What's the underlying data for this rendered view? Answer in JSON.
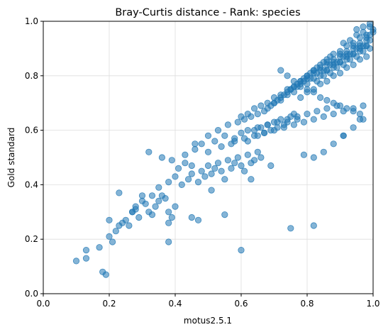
{
  "chart_data": {
    "type": "scatter",
    "title": "Bray-Curtis distance - Rank: species",
    "xlabel": "motus2.5.1",
    "ylabel": "Gold standard",
    "xlim": [
      0.0,
      1.0
    ],
    "ylim": [
      0.0,
      1.0
    ],
    "xticks": [
      "0.0",
      "0.2",
      "0.4",
      "0.6",
      "0.8",
      "1.0"
    ],
    "yticks": [
      "0.0",
      "0.2",
      "0.4",
      "0.6",
      "0.8",
      "1.0"
    ],
    "grid": true,
    "color": "#1f77b4",
    "marker_alpha": 0.55,
    "series": [
      {
        "x": [
          0.1,
          0.13,
          0.13,
          0.17,
          0.18,
          0.19,
          0.2,
          0.2,
          0.21,
          0.22,
          0.23,
          0.24,
          0.25,
          0.26,
          0.27,
          0.28,
          0.28,
          0.29,
          0.3,
          0.31,
          0.32,
          0.33,
          0.34,
          0.35,
          0.36,
          0.37,
          0.38,
          0.38,
          0.39,
          0.4,
          0.23,
          0.27,
          0.3,
          0.33,
          0.35,
          0.38,
          0.4,
          0.42,
          0.44,
          0.45,
          0.47,
          0.48,
          0.49,
          0.5,
          0.51,
          0.52,
          0.53,
          0.54,
          0.55,
          0.56,
          0.57,
          0.58,
          0.59,
          0.6,
          0.61,
          0.62,
          0.63,
          0.64,
          0.65,
          0.66,
          0.32,
          0.36,
          0.39,
          0.41,
          0.43,
          0.45,
          0.46,
          0.48,
          0.5,
          0.52,
          0.54,
          0.55,
          0.57,
          0.58,
          0.6,
          0.62,
          0.64,
          0.65,
          0.66,
          0.67,
          0.68,
          0.69,
          0.7,
          0.71,
          0.72,
          0.73,
          0.74,
          0.75,
          0.76,
          0.77,
          0.43,
          0.46,
          0.5,
          0.53,
          0.56,
          0.59,
          0.61,
          0.63,
          0.65,
          0.67,
          0.68,
          0.69,
          0.7,
          0.71,
          0.72,
          0.73,
          0.74,
          0.75,
          0.76,
          0.77,
          0.78,
          0.79,
          0.8,
          0.81,
          0.82,
          0.83,
          0.84,
          0.85,
          0.86,
          0.87,
          0.6,
          0.62,
          0.64,
          0.66,
          0.68,
          0.7,
          0.72,
          0.74,
          0.76,
          0.78,
          0.8,
          0.82,
          0.84,
          0.86,
          0.88,
          0.9,
          0.92,
          0.94,
          0.96,
          0.98,
          0.7,
          0.72,
          0.74,
          0.76,
          0.78,
          0.8,
          0.82,
          0.84,
          0.86,
          0.88,
          0.9,
          0.92,
          0.94,
          0.96,
          0.98,
          0.99,
          0.75,
          0.77,
          0.79,
          0.81,
          0.83,
          0.85,
          0.87,
          0.89,
          0.91,
          0.93,
          0.95,
          0.97,
          0.99,
          0.78,
          0.8,
          0.82,
          0.84,
          0.86,
          0.88,
          0.9,
          0.92,
          0.94,
          0.96,
          0.98,
          1.0,
          0.8,
          0.82,
          0.84,
          0.86,
          0.88,
          0.9,
          0.92,
          0.94,
          0.96,
          0.98,
          0.83,
          0.85,
          0.87,
          0.89,
          0.91,
          0.93,
          0.95,
          0.97,
          0.99,
          0.86,
          0.88,
          0.9,
          0.92,
          0.94,
          0.96,
          0.98,
          0.88,
          0.9,
          0.92,
          0.94,
          0.96,
          0.98,
          1.0,
          0.91,
          0.93,
          0.95,
          0.97,
          0.99,
          0.95,
          0.97,
          0.99,
          0.72,
          0.74,
          0.76,
          0.78,
          0.8,
          0.82,
          0.84,
          0.86,
          0.88,
          0.9,
          0.92,
          0.94,
          0.96,
          0.62,
          0.65,
          0.68,
          0.71,
          0.74,
          0.77,
          0.8,
          0.83,
          0.86,
          0.89,
          0.58,
          0.61,
          0.64,
          0.67,
          0.7,
          0.73,
          0.76,
          0.79,
          0.82,
          0.85,
          0.88,
          0.91,
          0.94,
          0.97,
          0.82,
          0.85,
          0.88,
          0.91,
          0.94,
          0.97,
          0.6,
          0.75,
          0.82,
          0.38,
          0.47,
          0.55,
          0.45,
          0.51,
          0.63,
          0.69,
          0.79,
          0.91,
          0.96
        ],
        "y": [
          0.12,
          0.13,
          0.16,
          0.17,
          0.08,
          0.07,
          0.27,
          0.21,
          0.19,
          0.23,
          0.25,
          0.26,
          0.27,
          0.25,
          0.3,
          0.31,
          0.32,
          0.28,
          0.36,
          0.33,
          0.3,
          0.29,
          0.32,
          0.34,
          0.36,
          0.35,
          0.3,
          0.19,
          0.28,
          0.32,
          0.37,
          0.3,
          0.34,
          0.36,
          0.39,
          0.41,
          0.43,
          0.4,
          0.42,
          0.44,
          0.41,
          0.45,
          0.43,
          0.47,
          0.44,
          0.46,
          0.48,
          0.45,
          0.42,
          0.49,
          0.46,
          0.48,
          0.5,
          0.47,
          0.45,
          0.51,
          0.48,
          0.49,
          0.52,
          0.5,
          0.52,
          0.5,
          0.49,
          0.46,
          0.51,
          0.47,
          0.53,
          0.55,
          0.52,
          0.56,
          0.54,
          0.58,
          0.55,
          0.57,
          0.59,
          0.56,
          0.6,
          0.58,
          0.61,
          0.59,
          0.62,
          0.6,
          0.63,
          0.61,
          0.64,
          0.62,
          0.63,
          0.65,
          0.66,
          0.64,
          0.48,
          0.55,
          0.58,
          0.6,
          0.62,
          0.63,
          0.64,
          0.65,
          0.66,
          0.67,
          0.68,
          0.69,
          0.7,
          0.71,
          0.72,
          0.73,
          0.74,
          0.75,
          0.76,
          0.77,
          0.78,
          0.79,
          0.8,
          0.81,
          0.82,
          0.83,
          0.84,
          0.85,
          0.86,
          0.87,
          0.65,
          0.66,
          0.68,
          0.69,
          0.7,
          0.72,
          0.73,
          0.75,
          0.76,
          0.78,
          0.79,
          0.81,
          0.82,
          0.84,
          0.85,
          0.87,
          0.88,
          0.9,
          0.91,
          0.93,
          0.7,
          0.71,
          0.73,
          0.74,
          0.76,
          0.77,
          0.79,
          0.8,
          0.82,
          0.83,
          0.85,
          0.86,
          0.88,
          0.89,
          0.91,
          0.95,
          0.75,
          0.76,
          0.78,
          0.79,
          0.81,
          0.82,
          0.84,
          0.85,
          0.87,
          0.88,
          0.9,
          0.91,
          0.93,
          0.72,
          0.74,
          0.75,
          0.77,
          0.78,
          0.8,
          0.81,
          0.83,
          0.84,
          0.86,
          0.87,
          0.96,
          0.8,
          0.82,
          0.83,
          0.85,
          0.86,
          0.88,
          0.89,
          0.91,
          0.92,
          0.94,
          0.78,
          0.8,
          0.81,
          0.83,
          0.84,
          0.86,
          0.87,
          0.89,
          0.9,
          0.82,
          0.84,
          0.85,
          0.87,
          0.88,
          0.9,
          0.91,
          0.88,
          0.89,
          0.91,
          0.92,
          0.94,
          0.95,
          0.97,
          0.92,
          0.93,
          0.95,
          0.96,
          0.98,
          0.97,
          0.98,
          0.99,
          0.82,
          0.8,
          0.78,
          0.77,
          0.75,
          0.74,
          0.72,
          0.71,
          0.7,
          0.69,
          0.68,
          0.67,
          0.66,
          0.6,
          0.61,
          0.62,
          0.63,
          0.64,
          0.65,
          0.66,
          0.67,
          0.68,
          0.69,
          0.56,
          0.57,
          0.58,
          0.59,
          0.6,
          0.61,
          0.62,
          0.63,
          0.64,
          0.65,
          0.66,
          0.67,
          0.68,
          0.69,
          0.5,
          0.52,
          0.55,
          0.58,
          0.61,
          0.64,
          0.16,
          0.24,
          0.25,
          0.26,
          0.27,
          0.29,
          0.28,
          0.38,
          0.42,
          0.47,
          0.51,
          0.58,
          0.64
        ]
      }
    ]
  }
}
